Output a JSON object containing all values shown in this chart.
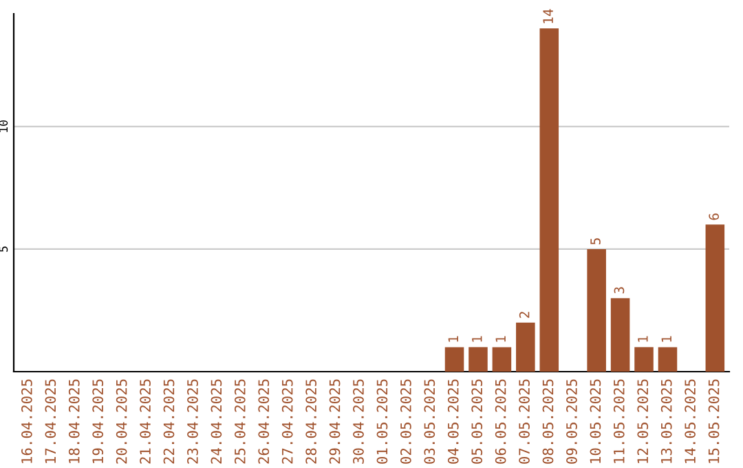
{
  "chart_data": {
    "type": "bar",
    "categories": [
      "16.04.2025",
      "17.04.2025",
      "18.04.2025",
      "19.04.2025",
      "20.04.2025",
      "21.04.2025",
      "22.04.2025",
      "23.04.2025",
      "24.04.2025",
      "25.04.2025",
      "26.04.2025",
      "27.04.2025",
      "28.04.2025",
      "29.04.2025",
      "30.04.2025",
      "01.05.2025",
      "02.05.2025",
      "03.05.2025",
      "04.05.2025",
      "05.05.2025",
      "06.05.2025",
      "07.05.2025",
      "08.05.2025",
      "09.05.2025",
      "10.05.2025",
      "11.05.2025",
      "12.05.2025",
      "13.05.2025",
      "14.05.2025",
      "15.05.2025"
    ],
    "values": [
      0,
      0,
      0,
      0,
      0,
      0,
      0,
      0,
      0,
      0,
      0,
      0,
      0,
      0,
      0,
      0,
      0,
      0,
      1,
      1,
      1,
      2,
      14,
      0,
      5,
      3,
      1,
      1,
      0,
      6
    ],
    "value_labels": [
      null,
      null,
      null,
      null,
      null,
      null,
      null,
      null,
      null,
      null,
      null,
      null,
      null,
      null,
      null,
      null,
      null,
      null,
      "1",
      "1",
      "1",
      "2",
      "14",
      null,
      "5",
      "3",
      "1",
      "1",
      null,
      "6"
    ],
    "color": "#a0522d",
    "ylim": [
      0,
      14.6
    ],
    "yticks": [
      5,
      10
    ],
    "grid": "y"
  }
}
